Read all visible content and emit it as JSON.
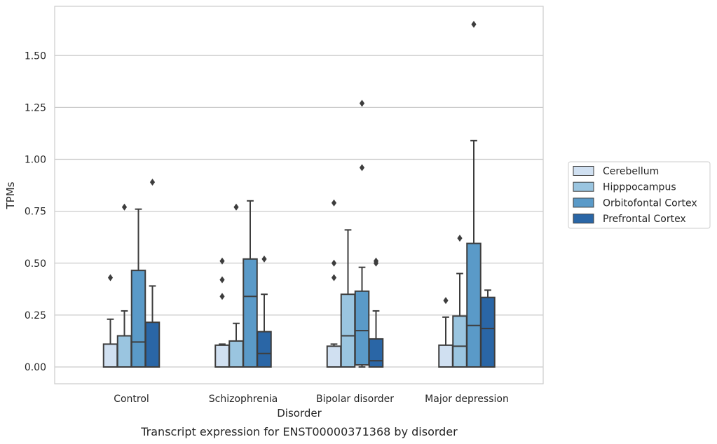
{
  "chart_data": {
    "type": "box",
    "caption": "Transcript expression for ENST00000371368 by disorder",
    "xlabel": "Disorder",
    "ylabel": "TPMs",
    "ylim": [
      -0.08,
      1.76
    ],
    "yticks": [
      0.0,
      0.25,
      0.5,
      0.75,
      1.0,
      1.25,
      1.5
    ],
    "ytick_labels": [
      "0.00",
      "0.25",
      "0.50",
      "0.75",
      "1.00",
      "1.25",
      "1.50"
    ],
    "grid": true,
    "legend_position": "right",
    "categories": [
      "Control",
      "Schizophrenia",
      "Bipolar disorder",
      "Major depression"
    ],
    "series": [
      {
        "name": "Cerebellum",
        "color": "#d0e0f1",
        "boxes": [
          {
            "whisker_low": 0.0,
            "q1": 0.0,
            "median": 0.0,
            "q3": 0.11,
            "whisker_high": 0.23,
            "outliers": [
              0.43
            ]
          },
          {
            "whisker_low": 0.0,
            "q1": 0.0,
            "median": 0.0,
            "q3": 0.105,
            "whisker_high": 0.11,
            "outliers": [
              0.51,
              0.42,
              0.34
            ]
          },
          {
            "whisker_low": 0.0,
            "q1": 0.0,
            "median": 0.0,
            "q3": 0.1,
            "whisker_high": 0.11,
            "outliers": [
              0.79,
              0.5,
              0.43
            ]
          },
          {
            "whisker_low": 0.0,
            "q1": 0.0,
            "median": 0.0,
            "q3": 0.105,
            "whisker_high": 0.24,
            "outliers": [
              0.32
            ]
          }
        ]
      },
      {
        "name": "Hipppocampus",
        "color": "#9ac5e0",
        "boxes": [
          {
            "whisker_low": 0.0,
            "q1": 0.0,
            "median": 0.0,
            "q3": 0.15,
            "whisker_high": 0.27,
            "outliers": [
              0.77
            ]
          },
          {
            "whisker_low": 0.0,
            "q1": 0.0,
            "median": 0.0,
            "q3": 0.125,
            "whisker_high": 0.21,
            "outliers": [
              0.77
            ]
          },
          {
            "whisker_low": 0.0,
            "q1": 0.0,
            "median": 0.15,
            "q3": 0.35,
            "whisker_high": 0.66,
            "outliers": []
          },
          {
            "whisker_low": 0.0,
            "q1": 0.0,
            "median": 0.1,
            "q3": 0.245,
            "whisker_high": 0.45,
            "outliers": [
              0.62
            ]
          }
        ]
      },
      {
        "name": "Orbitofontal Cortex",
        "color": "#5a9ac8",
        "boxes": [
          {
            "whisker_low": 0.0,
            "q1": 0.0,
            "median": 0.12,
            "q3": 0.465,
            "whisker_high": 0.76,
            "outliers": []
          },
          {
            "whisker_low": 0.0,
            "q1": 0.0,
            "median": 0.34,
            "q3": 0.52,
            "whisker_high": 0.8,
            "outliers": []
          },
          {
            "whisker_low": 0.0,
            "q1": 0.01,
            "median": 0.175,
            "q3": 0.365,
            "whisker_high": 0.48,
            "outliers": [
              1.27,
              0.96
            ]
          },
          {
            "whisker_low": 0.0,
            "q1": 0.0,
            "median": 0.2,
            "q3": 0.595,
            "whisker_high": 1.09,
            "outliers": [
              1.65
            ]
          }
        ]
      },
      {
        "name": "Prefrontal Cortex",
        "color": "#2a66a6",
        "boxes": [
          {
            "whisker_low": 0.0,
            "q1": 0.0,
            "median": 0.0,
            "q3": 0.215,
            "whisker_high": 0.39,
            "outliers": [
              0.89
            ]
          },
          {
            "whisker_low": 0.0,
            "q1": 0.0,
            "median": 0.065,
            "q3": 0.17,
            "whisker_high": 0.35,
            "outliers": [
              0.52
            ]
          },
          {
            "whisker_low": 0.0,
            "q1": 0.0,
            "median": 0.03,
            "q3": 0.135,
            "whisker_high": 0.27,
            "outliers": [
              0.51,
              0.5
            ]
          },
          {
            "whisker_low": 0.0,
            "q1": 0.0,
            "median": 0.185,
            "q3": 0.335,
            "whisker_high": 0.37,
            "outliers": []
          }
        ]
      }
    ]
  }
}
